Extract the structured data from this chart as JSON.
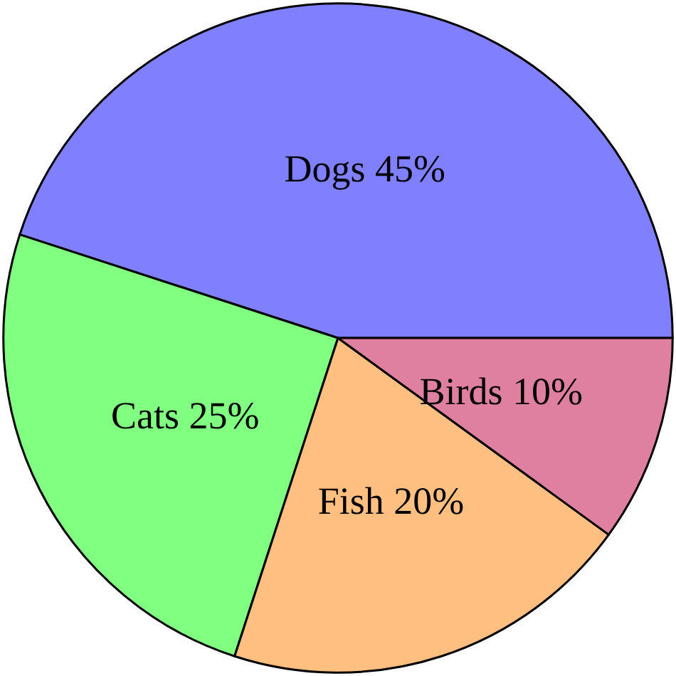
{
  "chart_data": {
    "type": "pie",
    "categories": [
      "Dogs",
      "Cats",
      "Fish",
      "Birds"
    ],
    "values": [
      45,
      25,
      20,
      10
    ],
    "value_labels": [
      "45%",
      "25%",
      "20%",
      "10%"
    ],
    "colors": [
      "#8080ff",
      "#80ff80",
      "#ffbf80",
      "#df80a0"
    ],
    "legend": false
  }
}
